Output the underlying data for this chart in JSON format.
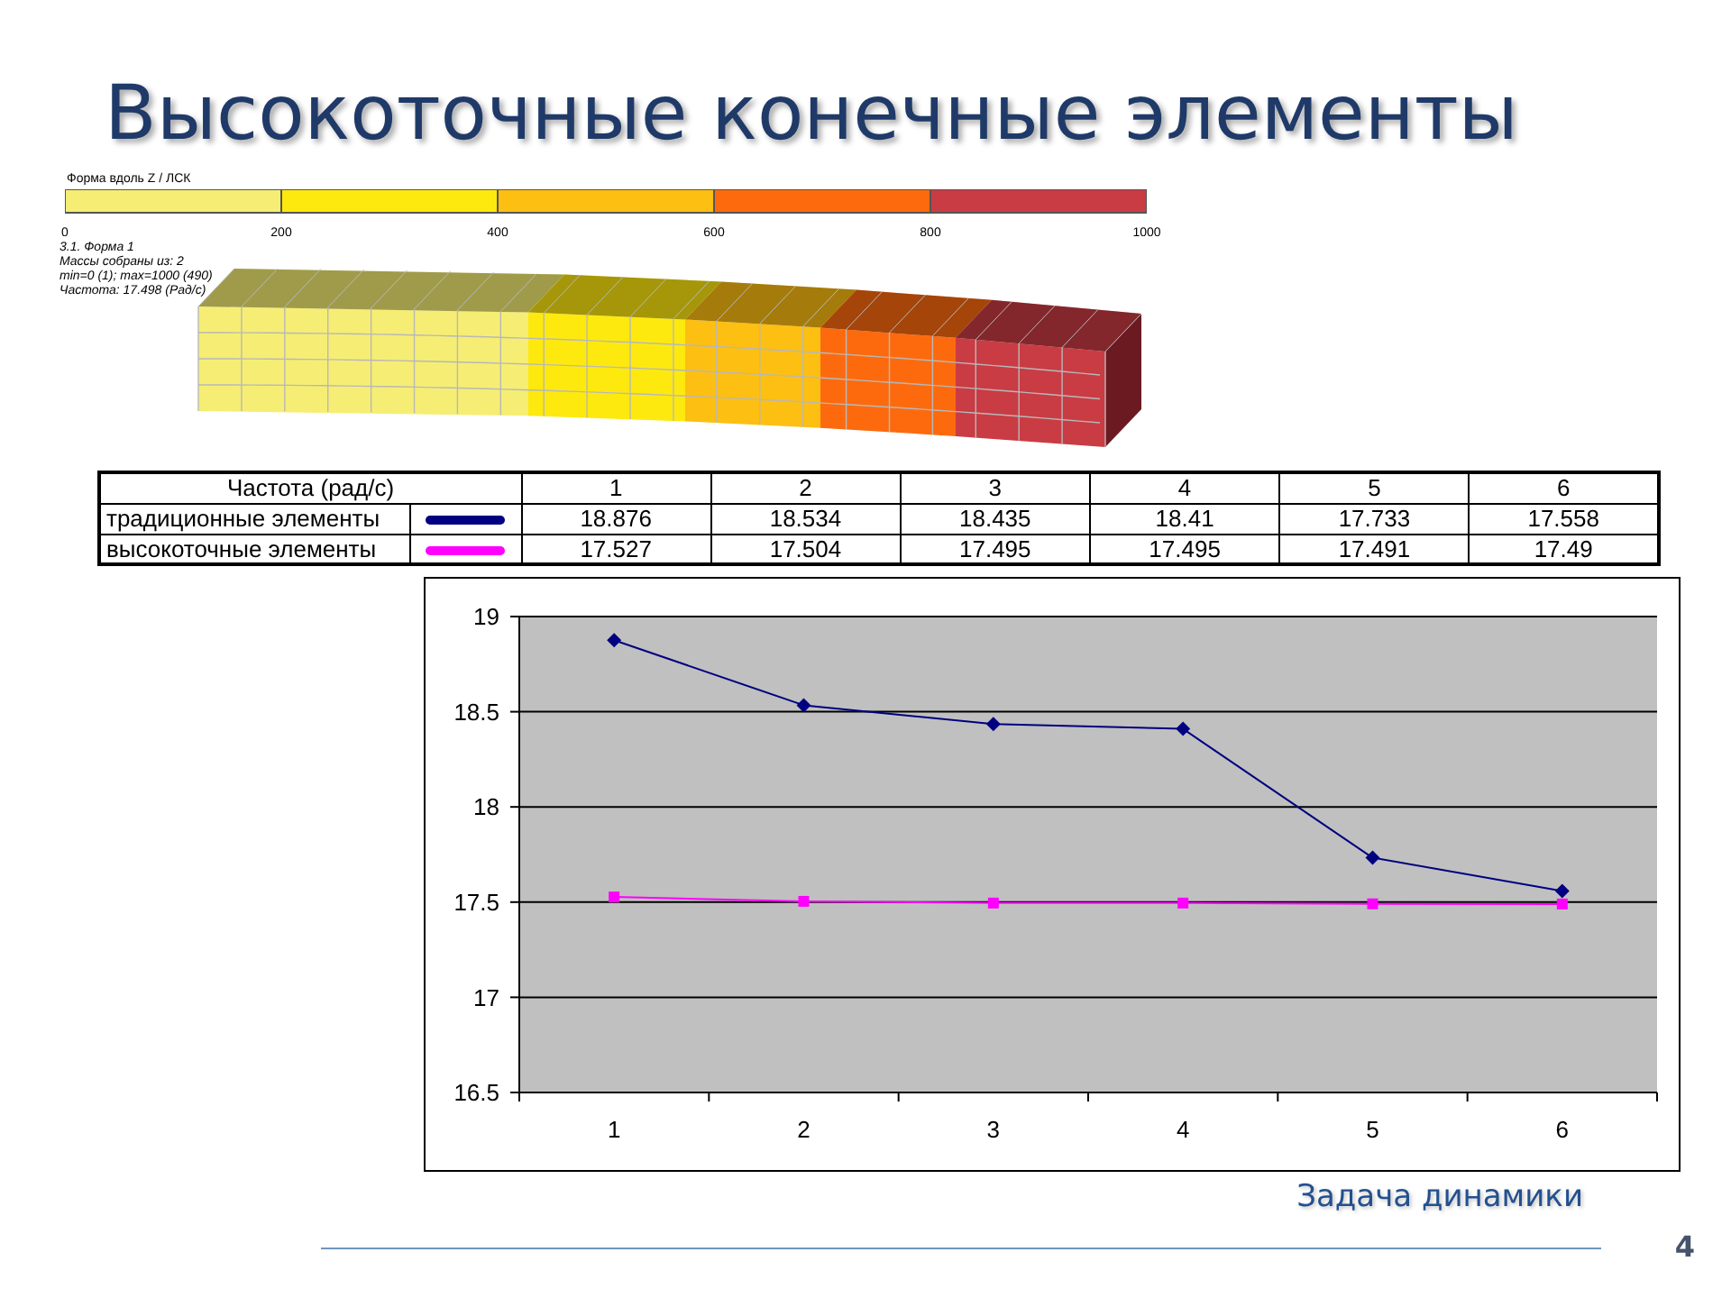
{
  "chart_data": [
    {
      "type": "bar",
      "orientation": "horizontal",
      "stacked": true,
      "title": "Высокоточные конечные элементы",
      "xlabel": "Форма вдоль Z / ЛСК",
      "categories": [
        null
      ],
      "series": [
        {
          "color": "#f6ee74",
          "values": [
            200
          ]
        },
        {
          "color": "#fde90e",
          "values": [
            200
          ]
        },
        {
          "color": "#fdbf12",
          "values": [
            200
          ]
        },
        {
          "color": "#fd6a0e",
          "values": [
            200
          ]
        },
        {
          "color": "#c93c44",
          "values": [
            200
          ]
        }
      ],
      "xlim": [
        0,
        1000
      ],
      "xticks": [
        0,
        200,
        400,
        600,
        800,
        1000
      ],
      "annotations": [
        "3.1. Форма 1",
        "Массы собраны из: 2",
        "min=0 (1); max=1000 (490)",
        "Частота: 17.498 (Рад/с)"
      ]
    },
    {
      "type": "line",
      "legend_title": "Частота (рад/с)",
      "categories": [
        "1",
        "2",
        "3",
        "4",
        "5",
        "6"
      ],
      "series": [
        {
          "name": "традиционные элементы",
          "color": "#000080",
          "marker": "diamond",
          "values": [
            18.876,
            18.534,
            18.435,
            18.41,
            17.733,
            17.558
          ]
        },
        {
          "name": "высокоточные элементы",
          "color": "#ff00ff",
          "marker": "square",
          "values": [
            17.527,
            17.504,
            17.495,
            17.495,
            17.491,
            17.49
          ]
        }
      ],
      "ylim": [
        16.5,
        19
      ],
      "yticks": [
        16.5,
        17,
        17.5,
        18,
        18.5,
        19
      ],
      "grid": "y",
      "legend": "top",
      "data_labels": true,
      "annotations": [
        "Задача динамики",
        "4"
      ]
    }
  ]
}
